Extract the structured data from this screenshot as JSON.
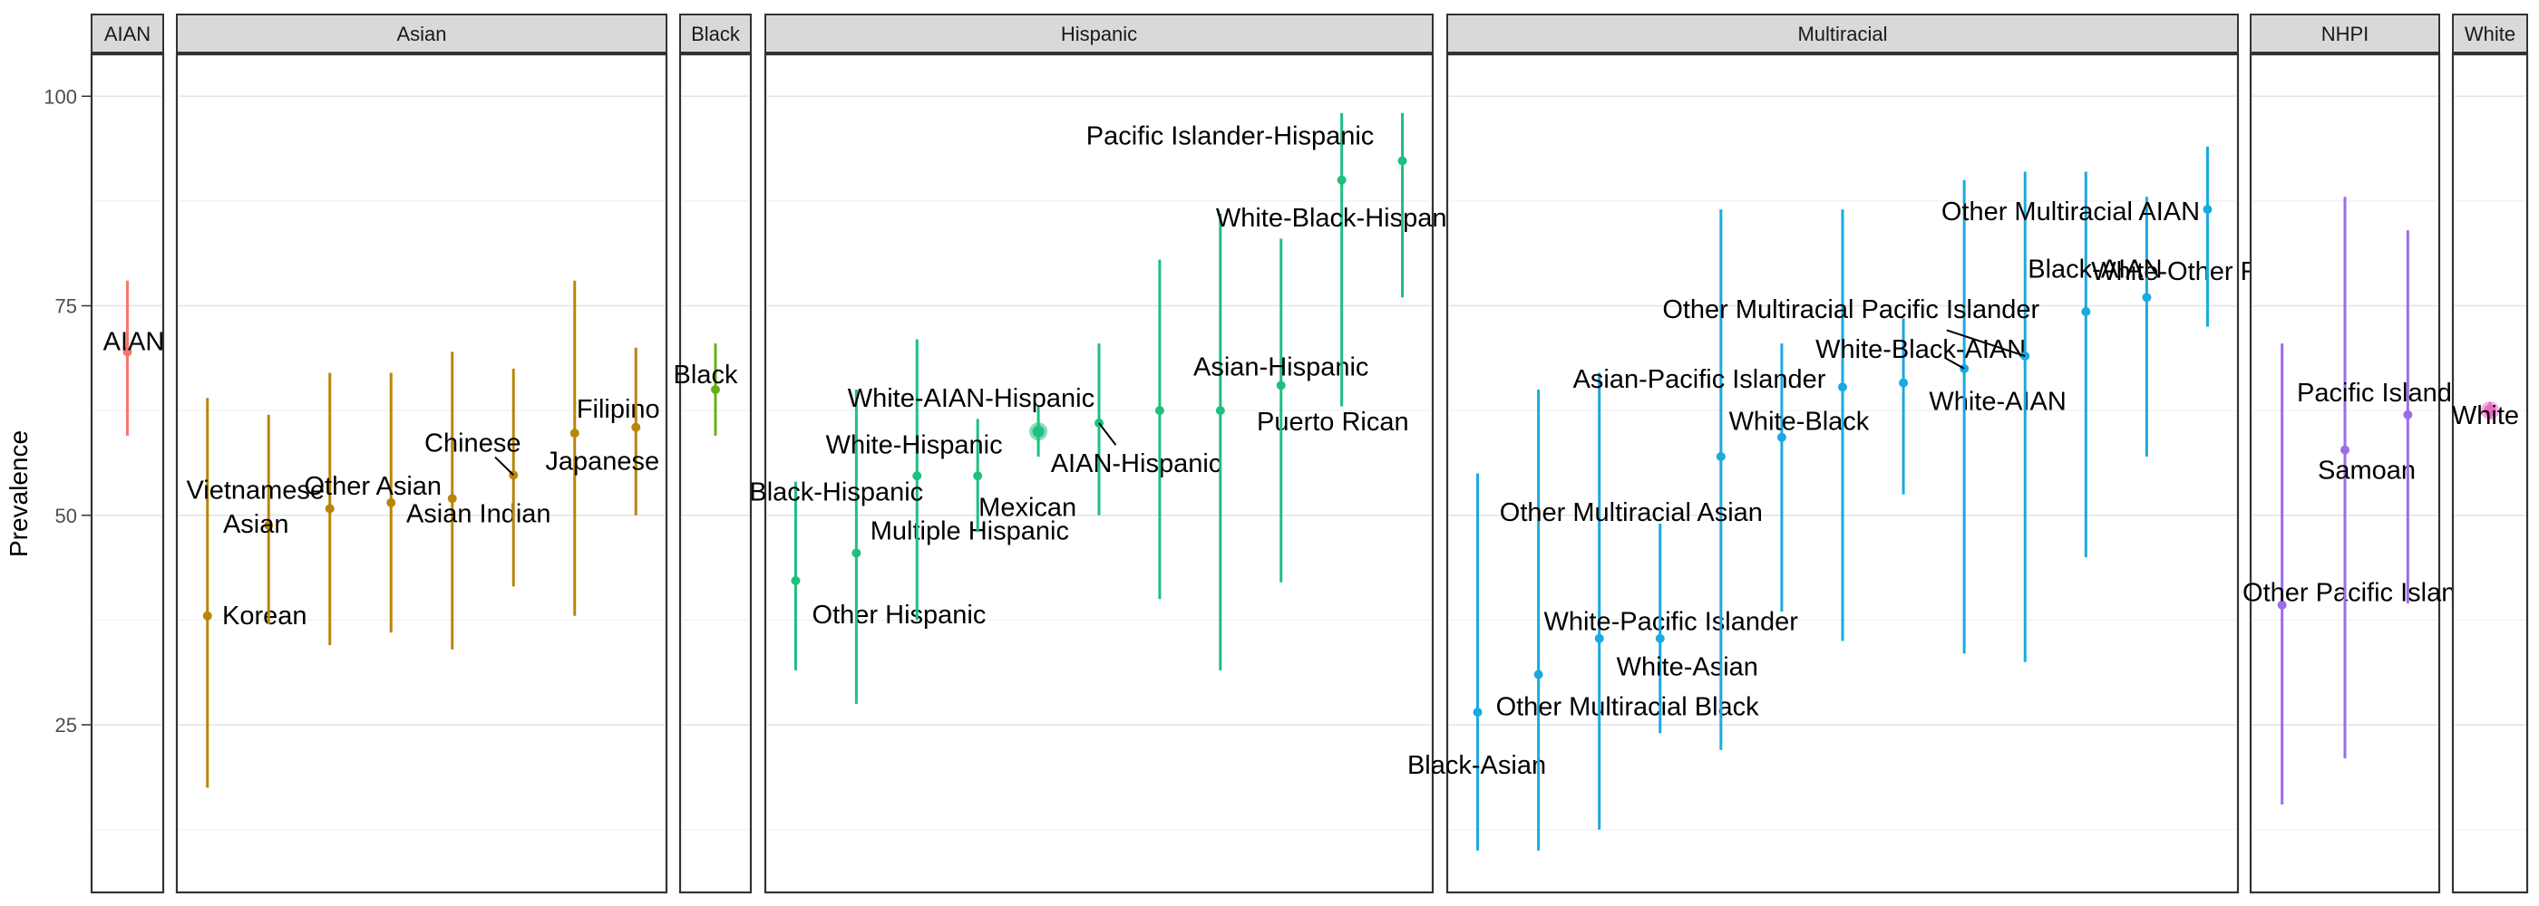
{
  "chart_data": {
    "type": "scatter",
    "subtype": "point-range faceted by group",
    "title": "",
    "xlabel": "",
    "ylabel": "Prevalence",
    "ylim": [
      5,
      105
    ],
    "y_ticks": [
      25,
      50,
      75,
      100
    ],
    "grid": true,
    "legend": "none",
    "facets": [
      {
        "name": "AIAN",
        "color": "#F8766D",
        "points": [
          {
            "label": "AIAN",
            "y": 69.5,
            "low": 59.5,
            "high": 78,
            "big": false
          }
        ]
      },
      {
        "name": "Asian",
        "color": "#B8860B",
        "points": [
          {
            "label": "Korean",
            "y": 38,
            "low": 17.5,
            "high": 64,
            "big": false
          },
          {
            "label": "Asian",
            "y": 48.8,
            "low": 37,
            "high": 62,
            "big": false
          },
          {
            "label": "Vietnamese",
            "y": 50.8,
            "low": 34.5,
            "high": 67,
            "big": false
          },
          {
            "label": "Other Asian",
            "y": 51.5,
            "low": 36,
            "high": 67,
            "big": false
          },
          {
            "label": "Asian Indian",
            "y": 52,
            "low": 34,
            "high": 69.5,
            "big": false
          },
          {
            "label": "Chinese",
            "y": 54.8,
            "low": 41.5,
            "high": 67.5,
            "big": false
          },
          {
            "label": "Filipino",
            "y": 59.8,
            "low": 38,
            "high": 78,
            "big": false
          },
          {
            "label": "Japanese",
            "y": 60.5,
            "low": 50,
            "high": 70,
            "big": false
          }
        ]
      },
      {
        "name": "Black",
        "color": "#6BAE1A",
        "points": [
          {
            "label": "Black",
            "y": 65,
            "low": 59.5,
            "high": 70.5,
            "big": false
          }
        ]
      },
      {
        "name": "Hispanic",
        "color": "#1FBF80",
        "points": [
          {
            "label": "Other Hispanic",
            "y": 42.2,
            "low": 31.5,
            "high": 54,
            "big": false
          },
          {
            "label": "Multiple Hispanic",
            "y": 45.5,
            "low": 27.5,
            "high": 65,
            "big": false
          },
          {
            "label": "Black-Hispanic",
            "y": 54.7,
            "low": 37.5,
            "high": 71,
            "big": false
          },
          {
            "label": "Mexican",
            "y": 54.7,
            "low": 48,
            "high": 61.5,
            "big": false
          },
          {
            "label": "White-Hispanic",
            "y": 60,
            "low": 57,
            "high": 63,
            "big": true
          },
          {
            "label": "AIAN-Hispanic",
            "y": 61,
            "low": 50,
            "high": 70.5,
            "big": false
          },
          {
            "label": "White-AIAN-Hispanic",
            "y": 62.5,
            "low": 40,
            "high": 80.5,
            "big": false
          },
          {
            "label": "Puerto Rican",
            "y": 62.5,
            "low": 31.5,
            "high": 86,
            "big": false
          },
          {
            "label": "Asian-Hispanic",
            "y": 65.5,
            "low": 42,
            "high": 83,
            "big": false
          },
          {
            "label": "White-Black-Hispanic",
            "y": 90,
            "low": 63,
            "high": 98,
            "big": false
          },
          {
            "label": "Pacific Islander-Hispanic",
            "y": 92.3,
            "low": 76,
            "high": 98,
            "big": false
          }
        ]
      },
      {
        "name": "Multiracial",
        "color": "#1AA9E0",
        "points": [
          {
            "label": "Black-Asian",
            "y": 26.5,
            "low": 10,
            "high": 55,
            "big": false
          },
          {
            "label": "Other Multiracial Black",
            "y": 31,
            "low": 10,
            "high": 65,
            "big": false
          },
          {
            "label": "White-Pacific Islander",
            "y": 35.3,
            "low": 12.5,
            "high": 67,
            "big": false
          },
          {
            "label": "White-Asian",
            "y": 35.3,
            "low": 24,
            "high": 49,
            "big": false
          },
          {
            "label": "Other Multiracial Asian",
            "y": 57,
            "low": 22,
            "high": 86.5,
            "big": false
          },
          {
            "label": "White-Black",
            "y": 59.3,
            "low": 38.5,
            "high": 70.5,
            "big": false
          },
          {
            "label": "Asian-Pacific Islander",
            "y": 65.3,
            "low": 35,
            "high": 86.5,
            "big": false
          },
          {
            "label": "White-AIAN",
            "y": 65.8,
            "low": 52.5,
            "high": 73.5,
            "big": false
          },
          {
            "label": "White-Black-AIAN",
            "y": 67.5,
            "low": 33.5,
            "high": 90,
            "big": false
          },
          {
            "label": "Other Multiracial Pacific Islander",
            "y": 69,
            "low": 32.5,
            "high": 91,
            "big": false
          },
          {
            "label": "White-Other Race",
            "y": 74.3,
            "low": 45,
            "high": 91,
            "big": false
          },
          {
            "label": "Black-AIAN",
            "y": 76,
            "low": 57,
            "high": 88,
            "big": false
          },
          {
            "label": "Other Multiracial AIAN",
            "y": 86.5,
            "low": 72.5,
            "high": 94,
            "big": false
          }
        ]
      },
      {
        "name": "NHPI",
        "color": "#9D6BE8",
        "points": [
          {
            "label": "Other Pacific Islander",
            "y": 39.3,
            "low": 15.5,
            "high": 70.5,
            "big": false
          },
          {
            "label": "Samoan",
            "y": 57.8,
            "low": 21,
            "high": 88,
            "big": false
          },
          {
            "label": "Pacific Islander",
            "y": 62,
            "low": 39.5,
            "high": 84,
            "big": false
          }
        ]
      },
      {
        "name": "White",
        "color": "#F066C8",
        "points": [
          {
            "label": "White",
            "y": 62.5,
            "low": 61.5,
            "high": 63.5,
            "big": true
          }
        ]
      }
    ]
  }
}
